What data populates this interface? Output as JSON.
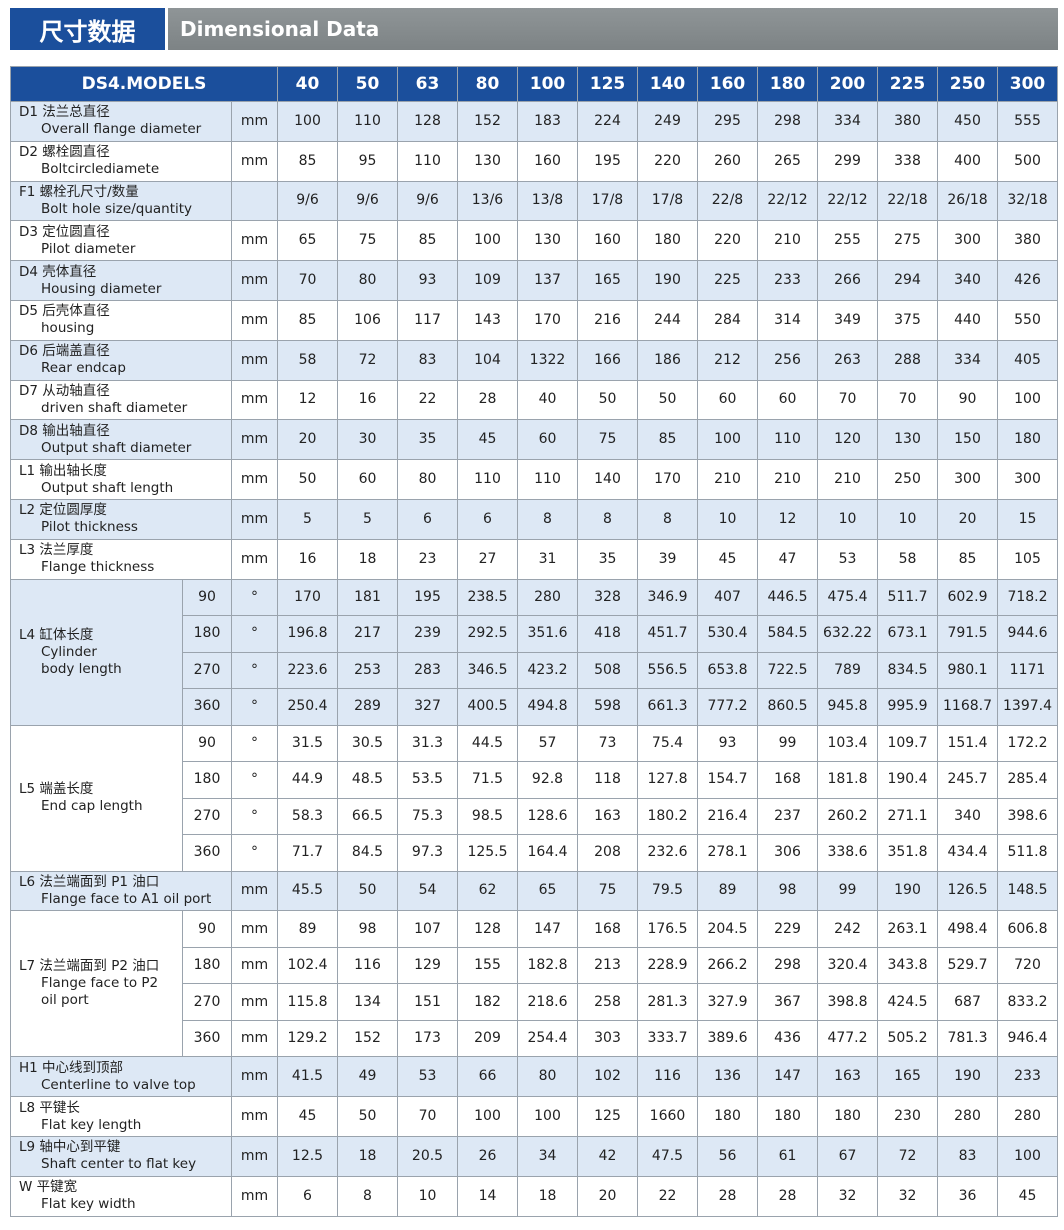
{
  "header": {
    "title_cn": "尺寸数据",
    "title_en": "Dimensional Data"
  },
  "table": {
    "corner": "DS4.MODELS",
    "models": [
      "40",
      "50",
      "63",
      "80",
      "100",
      "125",
      "140",
      "160",
      "180",
      "200",
      "225",
      "250",
      "300"
    ],
    "rows": [
      {
        "label": [
          "D1 法兰总直径",
          "Overall flange diameter"
        ],
        "unit": "mm",
        "values": [
          "100",
          "110",
          "128",
          "152",
          "183",
          "224",
          "249",
          "295",
          "298",
          "334",
          "380",
          "450",
          "555"
        ]
      },
      {
        "label": [
          "D2 螺栓圆直径",
          "Boltcirclediamete"
        ],
        "unit": "mm",
        "values": [
          "85",
          "95",
          "110",
          "130",
          "160",
          "195",
          "220",
          "260",
          "265",
          "299",
          "338",
          "400",
          "500"
        ]
      },
      {
        "label": [
          "F1 螺栓孔尺寸/数量",
          "Bolt hole size/quantity"
        ],
        "values": [
          "9/6",
          "9/6",
          "9/6",
          "13/6",
          "13/8",
          "17/8",
          "17/8",
          "22/8",
          "22/12",
          "22/12",
          "22/18",
          "26/18",
          "32/18"
        ]
      },
      {
        "label": [
          "D3 定位圆直径",
          "Pilot diameter"
        ],
        "unit": "mm",
        "values": [
          "65",
          "75",
          "85",
          "100",
          "130",
          "160",
          "180",
          "220",
          "210",
          "255",
          "275",
          "300",
          "380"
        ]
      },
      {
        "label": [
          "D4 壳体直径",
          "Housing diameter"
        ],
        "unit": "mm",
        "values": [
          "70",
          "80",
          "93",
          "109",
          "137",
          "165",
          "190",
          "225",
          "233",
          "266",
          "294",
          "340",
          "426"
        ]
      },
      {
        "label": [
          "D5 后壳体直径",
          "housing"
        ],
        "unit": "mm",
        "values": [
          "85",
          "106",
          "117",
          "143",
          "170",
          "216",
          "244",
          "284",
          "314",
          "349",
          "375",
          "440",
          "550"
        ]
      },
      {
        "label": [
          "D6 后端盖直径",
          "Rear endcap"
        ],
        "unit": "mm",
        "values": [
          "58",
          "72",
          "83",
          "104",
          "1322",
          "166",
          "186",
          "212",
          "256",
          "263",
          "288",
          "334",
          "405"
        ]
      },
      {
        "label": [
          "D7 从动轴直径",
          "driven shaft diameter"
        ],
        "unit": "mm",
        "values": [
          "12",
          "16",
          "22",
          "28",
          "40",
          "50",
          "50",
          "60",
          "60",
          "70",
          "70",
          "90",
          "100"
        ]
      },
      {
        "label": [
          "D8 输出轴直径",
          "Output shaft diameter"
        ],
        "unit": "mm",
        "values": [
          "20",
          "30",
          "35",
          "45",
          "60",
          "75",
          "85",
          "100",
          "110",
          "120",
          "130",
          "150",
          "180"
        ]
      },
      {
        "label": [
          "L1 输出轴长度",
          "Output shaft length"
        ],
        "unit": "mm",
        "values": [
          "50",
          "60",
          "80",
          "110",
          "110",
          "140",
          "170",
          "210",
          "210",
          "210",
          "250",
          "300",
          "300"
        ]
      },
      {
        "label": [
          "L2 定位圆厚度",
          "Pilot thickness"
        ],
        "unit": "mm",
        "values": [
          "5",
          "5",
          "6",
          "6",
          "8",
          "8",
          "8",
          "10",
          "12",
          "10",
          "10",
          "20",
          "15"
        ]
      },
      {
        "label": [
          "L3 法兰厚度",
          "Flange thickness"
        ],
        "unit": "mm",
        "values": [
          "16",
          "18",
          "23",
          "27",
          "31",
          "35",
          "39",
          "45",
          "47",
          "53",
          "58",
          "85",
          "105"
        ]
      },
      {
        "label": [
          "L4 缸体长度",
          "Cylinder",
          "body length"
        ],
        "subrows": [
          {
            "sub": "90",
            "unit": "°",
            "values": [
              "170",
              "181",
              "195",
              "238.5",
              "280",
              "328",
              "346.9",
              "407",
              "446.5",
              "475.4",
              "511.7",
              "602.9",
              "718.2"
            ]
          },
          {
            "sub": "180",
            "unit": "°",
            "values": [
              "196.8",
              "217",
              "239",
              "292.5",
              "351.6",
              "418",
              "451.7",
              "530.4",
              "584.5",
              "632.22",
              "673.1",
              "791.5",
              "944.6"
            ]
          },
          {
            "sub": "270",
            "unit": "°",
            "values": [
              "223.6",
              "253",
              "283",
              "346.5",
              "423.2",
              "508",
              "556.5",
              "653.8",
              "722.5",
              "789",
              "834.5",
              "980.1",
              "1171"
            ]
          },
          {
            "sub": "360",
            "unit": "°",
            "values": [
              "250.4",
              "289",
              "327",
              "400.5",
              "494.8",
              "598",
              "661.3",
              "777.2",
              "860.5",
              "945.8",
              "995.9",
              "1168.7",
              "1397.4"
            ]
          }
        ]
      },
      {
        "label": [
          "L5 端盖长度",
          "End cap length"
        ],
        "subrows": [
          {
            "sub": "90",
            "unit": "°",
            "values": [
              "31.5",
              "30.5",
              "31.3",
              "44.5",
              "57",
              "73",
              "75.4",
              "93",
              "99",
              "103.4",
              "109.7",
              "151.4",
              "172.2"
            ]
          },
          {
            "sub": "180",
            "unit": "°",
            "values": [
              "44.9",
              "48.5",
              "53.5",
              "71.5",
              "92.8",
              "118",
              "127.8",
              "154.7",
              "168",
              "181.8",
              "190.4",
              "245.7",
              "285.4"
            ]
          },
          {
            "sub": "270",
            "unit": "°",
            "values": [
              "58.3",
              "66.5",
              "75.3",
              "98.5",
              "128.6",
              "163",
              "180.2",
              "216.4",
              "237",
              "260.2",
              "271.1",
              "340",
              "398.6"
            ]
          },
          {
            "sub": "360",
            "unit": "°",
            "values": [
              "71.7",
              "84.5",
              "97.3",
              "125.5",
              "164.4",
              "208",
              "232.6",
              "278.1",
              "306",
              "338.6",
              "351.8",
              "434.4",
              "511.8"
            ]
          }
        ]
      },
      {
        "label": [
          "L6 法兰端面到 P1 油口",
          "Flange face to A1 oil port"
        ],
        "unit": "mm",
        "values": [
          "45.5",
          "50",
          "54",
          "62",
          "65",
          "75",
          "79.5",
          "89",
          "98",
          "99",
          "190",
          "126.5",
          "148.5"
        ]
      },
      {
        "label": [
          "L7 法兰端面到 P2 油口",
          "Flange face to P2",
          "oil port"
        ],
        "subrows": [
          {
            "sub": "90",
            "unit": "mm",
            "values": [
              "89",
              "98",
              "107",
              "128",
              "147",
              "168",
              "176.5",
              "204.5",
              "229",
              "242",
              "263.1",
              "498.4",
              "606.8"
            ]
          },
          {
            "sub": "180",
            "unit": "mm",
            "values": [
              "102.4",
              "116",
              "129",
              "155",
              "182.8",
              "213",
              "228.9",
              "266.2",
              "298",
              "320.4",
              "343.8",
              "529.7",
              "720"
            ]
          },
          {
            "sub": "270",
            "unit": "mm",
            "values": [
              "115.8",
              "134",
              "151",
              "182",
              "218.6",
              "258",
              "281.3",
              "327.9",
              "367",
              "398.8",
              "424.5",
              "687",
              "833.2"
            ]
          },
          {
            "sub": "360",
            "unit": "mm",
            "values": [
              "129.2",
              "152",
              "173",
              "209",
              "254.4",
              "303",
              "333.7",
              "389.6",
              "436",
              "477.2",
              "505.2",
              "781.3",
              "946.4"
            ]
          }
        ]
      },
      {
        "label": [
          "H1 中心线到顶部",
          "Centerline to valve top"
        ],
        "unit": "mm",
        "values": [
          "41.5",
          "49",
          "53",
          "66",
          "80",
          "102",
          "116",
          "136",
          "147",
          "163",
          "165",
          "190",
          "233"
        ]
      },
      {
        "label": [
          "L8 平键长",
          "Flat key length"
        ],
        "unit": "mm",
        "values": [
          "45",
          "50",
          "70",
          "100",
          "100",
          "125",
          "1660",
          "180",
          "180",
          "180",
          "230",
          "280",
          "280"
        ]
      },
      {
        "label": [
          "L9 轴中心到平键",
          "Shaft center to flat key"
        ],
        "unit": "mm",
        "values": [
          "12.5",
          "18",
          "20.5",
          "26",
          "34",
          "42",
          "47.5",
          "56",
          "61",
          "67",
          "72",
          "83",
          "100"
        ]
      },
      {
        "label": [
          "W 平键宽",
          "Flat key width"
        ],
        "unit": "mm",
        "values": [
          "6",
          "8",
          "10",
          "14",
          "18",
          "20",
          "22",
          "28",
          "28",
          "32",
          "32",
          "36",
          "45"
        ]
      }
    ]
  }
}
